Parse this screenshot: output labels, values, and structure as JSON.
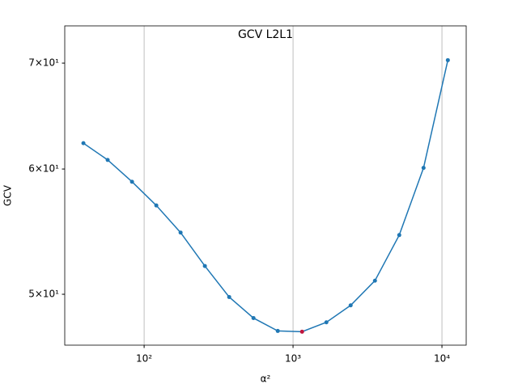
{
  "chart_data": {
    "type": "line",
    "title": "GCV L2L1",
    "xlabel": "α²",
    "ylabel": "GCV",
    "x": [
      39.1,
      56.9,
      82.9,
      120.7,
      175.7,
      255.8,
      372.5,
      542.3,
      789.6,
      1149.7,
      1674,
      2437,
      3549,
      5167,
      7524,
      10955
    ],
    "series": [
      {
        "color": "#1f77b4",
        "values": [
          62.3,
          60.8,
          58.9,
          56.9,
          54.7,
          52.1,
          49.8,
          48.3,
          47.4,
          47.35,
          48.0,
          49.2,
          51.0,
          54.5,
          60.1,
          70.3
        ]
      }
    ],
    "highlight": {
      "index": 9,
      "color": "#c0143c"
    },
    "xscale": "log",
    "yscale": "log",
    "xlim": [
      29.3,
      14550
    ],
    "ylim": [
      46.43,
      73.9
    ],
    "xticks": [
      {
        "value": 100,
        "label": "10²"
      },
      {
        "value": 1000,
        "label": "10³"
      },
      {
        "value": 10000,
        "label": "10⁴"
      }
    ],
    "yticks": [
      {
        "value": 50,
        "label": "5×10¹"
      },
      {
        "value": 60,
        "label": "6×10¹"
      },
      {
        "value": 70,
        "label": "7×10¹"
      }
    ],
    "grid": "x"
  }
}
